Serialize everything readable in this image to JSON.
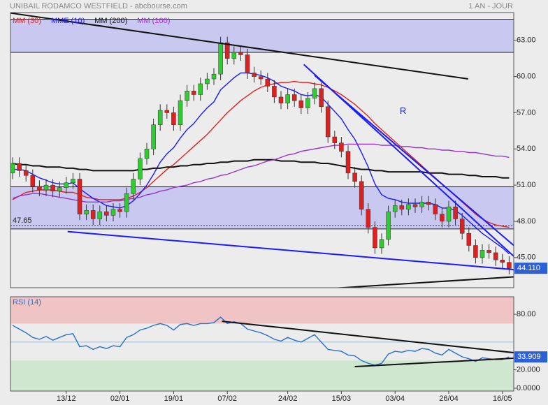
{
  "header": {
    "title": "UNIBAIL RODAMCO WESTFIELD - abcbourse.com",
    "period": "1 AN - JOUR"
  },
  "chart_data": [
    {
      "type": "candlestick",
      "categories": [
        null,
        null,
        null,
        null,
        null,
        null,
        null,
        null,
        "13/12",
        null,
        null,
        null,
        null,
        null,
        null,
        null,
        "02/01",
        null,
        null,
        null,
        null,
        null,
        null,
        null,
        "19/01",
        null,
        null,
        null,
        null,
        null,
        null,
        null,
        "07/02",
        null,
        null,
        null,
        null,
        null,
        null,
        null,
        null,
        "24/02",
        null,
        null,
        null,
        null,
        null,
        null,
        null,
        "15/03",
        null,
        null,
        null,
        null,
        null,
        null,
        null,
        "03/04",
        null,
        null,
        null,
        null,
        null,
        null,
        null,
        "26/04",
        null,
        null,
        null,
        null,
        null,
        null,
        null,
        "16/05",
        null
      ],
      "open": [
        52.0,
        52.8,
        52.2,
        51.8,
        50.9,
        50.6,
        51.0,
        50.5,
        50.8,
        51.2,
        51.5,
        48.6,
        48.9,
        48.2,
        48.8,
        48.5,
        49.0,
        48.8,
        50.3,
        51.5,
        53.2,
        54.0,
        56.0,
        57.2,
        57.0,
        56.0,
        58.0,
        58.8,
        58.5,
        59.4,
        59.8,
        60.2,
        62.8,
        61.5,
        62.0,
        61.8,
        60.3,
        60.0,
        59.8,
        59.2,
        58.3,
        57.8,
        58.5,
        58.0,
        57.4,
        58.2,
        59.0,
        57.5,
        55.0,
        54.5,
        53.8,
        52.0,
        51.3,
        49.0,
        47.5,
        45.8,
        46.5,
        48.8,
        49.3,
        49.0,
        49.4,
        49.2,
        49.6,
        49.4,
        48.6,
        48.0,
        49.2,
        48.2,
        47.0,
        46.0,
        45.0,
        45.6,
        45.4,
        44.8,
        44.6
      ],
      "high": [
        53.3,
        53.3,
        52.7,
        52.3,
        51.4,
        51.5,
        51.5,
        51.3,
        51.7,
        52.0,
        52.0,
        49.4,
        49.4,
        49.3,
        49.3,
        49.5,
        49.5,
        50.8,
        52.0,
        53.7,
        54.5,
        56.5,
        57.7,
        57.7,
        57.5,
        58.5,
        59.3,
        59.3,
        59.9,
        60.3,
        60.7,
        63.3,
        63.3,
        62.5,
        62.5,
        62.3,
        60.8,
        60.5,
        60.3,
        59.7,
        58.8,
        59.0,
        59.0,
        58.5,
        58.7,
        59.5,
        59.5,
        58.0,
        55.5,
        55.0,
        54.3,
        52.5,
        51.8,
        49.5,
        48.0,
        47.0,
        49.3,
        49.8,
        49.8,
        49.9,
        49.9,
        50.1,
        50.1,
        49.9,
        49.1,
        49.7,
        49.7,
        48.7,
        47.5,
        46.5,
        46.1,
        46.1,
        45.9,
        45.3,
        45.1
      ],
      "low": [
        51.5,
        51.7,
        51.3,
        50.4,
        50.1,
        50.1,
        50.0,
        50.0,
        50.3,
        50.7,
        48.1,
        48.1,
        47.7,
        47.7,
        48.0,
        48.0,
        48.3,
        48.3,
        49.8,
        51.0,
        52.7,
        53.5,
        55.5,
        56.5,
        55.5,
        55.5,
        57.5,
        58.0,
        58.0,
        58.9,
        59.3,
        59.7,
        61.0,
        61.0,
        61.3,
        59.8,
        59.5,
        59.3,
        58.7,
        57.8,
        57.3,
        57.3,
        57.5,
        56.9,
        56.9,
        57.7,
        57.0,
        54.5,
        54.0,
        53.3,
        51.5,
        50.8,
        48.5,
        47.0,
        45.3,
        45.3,
        46.0,
        48.3,
        48.5,
        48.5,
        48.7,
        48.7,
        48.9,
        48.1,
        47.5,
        47.5,
        47.7,
        46.5,
        45.5,
        44.5,
        44.5,
        44.9,
        44.3,
        44.1,
        43.61
      ],
      "close": [
        52.8,
        52.2,
        51.8,
        50.9,
        50.6,
        51.0,
        50.5,
        50.8,
        51.2,
        51.5,
        48.6,
        48.9,
        48.2,
        48.8,
        48.5,
        49.0,
        48.8,
        50.3,
        51.5,
        53.2,
        54.0,
        56.0,
        57.2,
        57.0,
        56.0,
        58.0,
        58.8,
        58.5,
        59.4,
        59.8,
        60.2,
        62.8,
        61.5,
        62.0,
        61.8,
        60.3,
        60.0,
        59.8,
        59.2,
        58.3,
        57.8,
        58.5,
        58.0,
        57.4,
        58.2,
        59.0,
        57.5,
        55.0,
        54.5,
        53.8,
        52.0,
        51.3,
        49.0,
        47.5,
        45.8,
        46.5,
        48.8,
        49.3,
        49.0,
        49.4,
        49.2,
        49.6,
        49.4,
        48.6,
        48.0,
        49.2,
        48.2,
        47.0,
        46.0,
        45.0,
        45.6,
        45.4,
        44.8,
        44.6,
        44.11
      ],
      "up_color": "#2ecc2e",
      "down_color": "#dd2020",
      "series": [
        {
          "name": "MM (30)",
          "color": "#e02020",
          "values": [
            49.8,
            50.1,
            50.4,
            50.5,
            50.6,
            50.6,
            50.6,
            50.5,
            50.4,
            50.4,
            50.2,
            50.0,
            49.9,
            49.8,
            49.8,
            49.8,
            49.8,
            49.9,
            50.1,
            50.4,
            50.8,
            51.3,
            51.8,
            52.3,
            52.7,
            53.2,
            53.7,
            54.2,
            54.7,
            55.2,
            55.8,
            56.4,
            57.0,
            57.5,
            58.0,
            58.4,
            58.8,
            59.1,
            59.3,
            59.4,
            59.5,
            59.5,
            59.6,
            59.5,
            59.5,
            59.4,
            59.3,
            59.1,
            58.8,
            58.5,
            58.1,
            57.7,
            57.2,
            56.7,
            56.1,
            55.6,
            55.1,
            54.6,
            54.1,
            53.6,
            53.1,
            52.6,
            52.1,
            51.6,
            51.1,
            50.6,
            50.1,
            49.6,
            49.1,
            48.6,
            48.2,
            47.9,
            47.7,
            47.6,
            47.5
          ]
        },
        {
          "name": "MME (10)",
          "color": "#1a1aff",
          "values": [
            52.3,
            52.3,
            52.2,
            51.9,
            51.6,
            51.4,
            51.2,
            51.1,
            51.1,
            51.2,
            50.7,
            50.3,
            49.9,
            49.6,
            49.3,
            49.2,
            49.1,
            49.3,
            49.7,
            50.3,
            51.0,
            51.9,
            52.9,
            53.6,
            54.1,
            54.9,
            55.6,
            56.1,
            56.8,
            57.4,
            57.9,
            58.9,
            59.4,
            59.9,
            60.3,
            60.3,
            60.2,
            60.1,
            59.9,
            59.6,
            59.2,
            59.0,
            58.8,
            58.5,
            58.4,
            58.5,
            58.3,
            57.7,
            57.1,
            56.5,
            55.6,
            54.8,
            53.7,
            52.5,
            51.1,
            50.2,
            49.9,
            49.8,
            49.6,
            49.5,
            49.5,
            49.5,
            49.5,
            49.4,
            49.1,
            49.1,
            48.9,
            48.5,
            48.0,
            47.5,
            47.0,
            46.6,
            46.2,
            45.8,
            45.3
          ]
        },
        {
          "name": "MM (200)",
          "color": "#111111",
          "values": [
            52.8,
            52.7,
            52.7,
            52.6,
            52.6,
            52.5,
            52.5,
            52.5,
            52.4,
            52.4,
            52.3,
            52.3,
            52.2,
            52.2,
            52.2,
            52.2,
            52.2,
            52.2,
            52.2,
            52.3,
            52.3,
            52.4,
            52.4,
            52.5,
            52.5,
            52.6,
            52.6,
            52.7,
            52.7,
            52.8,
            52.8,
            52.9,
            52.9,
            53.0,
            53.0,
            53.0,
            53.1,
            53.1,
            53.1,
            53.1,
            53.0,
            53.0,
            53.0,
            52.9,
            52.9,
            52.9,
            52.8,
            52.8,
            52.7,
            52.6,
            52.5,
            52.4,
            52.3,
            52.3,
            52.2,
            52.2,
            52.1,
            52.1,
            52.1,
            52.1,
            52.1,
            52.1,
            52.0,
            52.0,
            52.0,
            51.9,
            51.9,
            51.9,
            51.8,
            51.8,
            51.7,
            51.7,
            51.7,
            51.6,
            51.6
          ]
        },
        {
          "name": "MM (100)",
          "color": "#9933cc",
          "values": [
            49.9,
            50.1,
            50.2,
            50.3,
            50.3,
            50.2,
            50.1,
            50.0,
            49.9,
            49.8,
            49.7,
            49.6,
            49.6,
            49.6,
            49.6,
            49.7,
            49.7,
            49.8,
            49.9,
            50.0,
            50.2,
            50.3,
            50.5,
            50.6,
            50.8,
            50.9,
            51.0,
            51.2,
            51.3,
            51.5,
            51.6,
            51.8,
            51.9,
            52.1,
            52.3,
            52.5,
            52.6,
            52.8,
            53.0,
            53.1,
            53.3,
            53.5,
            53.6,
            53.8,
            53.9,
            54.0,
            54.1,
            54.2,
            54.3,
            54.3,
            54.4,
            54.4,
            54.4,
            54.4,
            54.4,
            54.3,
            54.3,
            54.3,
            54.2,
            54.2,
            54.1,
            54.1,
            54.0,
            54.0,
            53.9,
            53.9,
            53.8,
            53.8,
            53.7,
            53.7,
            53.6,
            53.5,
            53.4,
            53.4,
            53.3
          ]
        }
      ],
      "ylim": [
        42.5,
        65.3
      ],
      "yticks": [
        {
          "value": 45,
          "label": "45.00"
        },
        {
          "value": 48,
          "label": "48.00"
        },
        {
          "value": 51,
          "label": "51.00"
        },
        {
          "value": 54,
          "label": "54.00"
        },
        {
          "value": 57,
          "label": "57.00"
        },
        {
          "value": 60,
          "label": "60.00"
        },
        {
          "value": 63,
          "label": "63.00"
        }
      ],
      "zones": [
        {
          "low": 62.0,
          "high": 64.75,
          "color": "#c8c8f0"
        },
        {
          "low": 47.37,
          "high": 50.86,
          "color": "#c8c8f0"
        }
      ],
      "level": 47.65,
      "trendlines": [
        {
          "x": [
            -0.3,
            67.9
          ],
          "y": [
            65.26,
            59.8
          ],
          "color": "#111111"
        },
        {
          "x": [
            8.2,
            74.7
          ],
          "y": [
            47.15,
            44.0
          ],
          "color": "#1a1aff"
        },
        {
          "x": [
            29.4,
            74.7
          ],
          "y": [
            41.8,
            43.4
          ],
          "color": "#111111"
        },
        {
          "x": [
            43.4,
            74.7
          ],
          "y": [
            61.0,
            45.1
          ],
          "color": "#1a1aff"
        },
        {
          "x": [
            45.0,
            74.7
          ],
          "y": [
            60.1,
            46.0
          ],
          "color": "#1a1aff"
        }
      ],
      "annotation": {
        "text": "R",
        "x": 57.7,
        "y": 57.1
      },
      "last_value": {
        "value": 44.11,
        "label": "44.110"
      }
    },
    {
      "type": "line",
      "series": [
        {
          "name": "RSI (14)",
          "color": "#2a6fd0",
          "values": [
            68,
            64,
            60,
            55,
            53,
            56,
            52,
            55,
            58,
            59,
            45,
            46,
            42,
            45,
            43,
            46,
            45,
            55,
            58,
            63,
            65,
            68,
            70,
            68,
            63,
            69,
            70,
            68,
            70,
            70,
            71,
            77,
            70,
            72,
            70,
            64,
            62,
            60,
            57,
            53,
            51,
            55,
            52,
            50,
            54,
            58,
            50,
            42,
            41,
            40,
            36,
            35,
            30,
            27,
            25,
            27,
            37,
            40,
            39,
            41,
            40,
            43,
            42,
            38,
            36,
            42,
            38,
            34,
            32,
            29,
            33,
            32,
            31,
            31,
            33.909
          ]
        }
      ],
      "ylim": [
        -3,
        99
      ],
      "yticks": [
        {
          "value": 0,
          "label": "0.0000"
        },
        {
          "value": 20,
          "label": "20.000"
        },
        {
          "value": 80,
          "label": "80.00"
        }
      ],
      "zones": [
        {
          "low": 70,
          "high": 100,
          "color": "#f0c4c4"
        },
        {
          "low": -3,
          "high": 30,
          "color": "#cfe6cf"
        }
      ],
      "level": 50,
      "trendlines": [
        {
          "x": [
            31.2,
            74.7
          ],
          "y": [
            72.5,
            38.5
          ],
          "color": "#111111"
        },
        {
          "x": [
            51.0,
            74.7
          ],
          "y": [
            23.4,
            32.5
          ],
          "color": "#111111"
        }
      ],
      "last_value": {
        "value": 33.909,
        "label": "33.909"
      }
    }
  ]
}
